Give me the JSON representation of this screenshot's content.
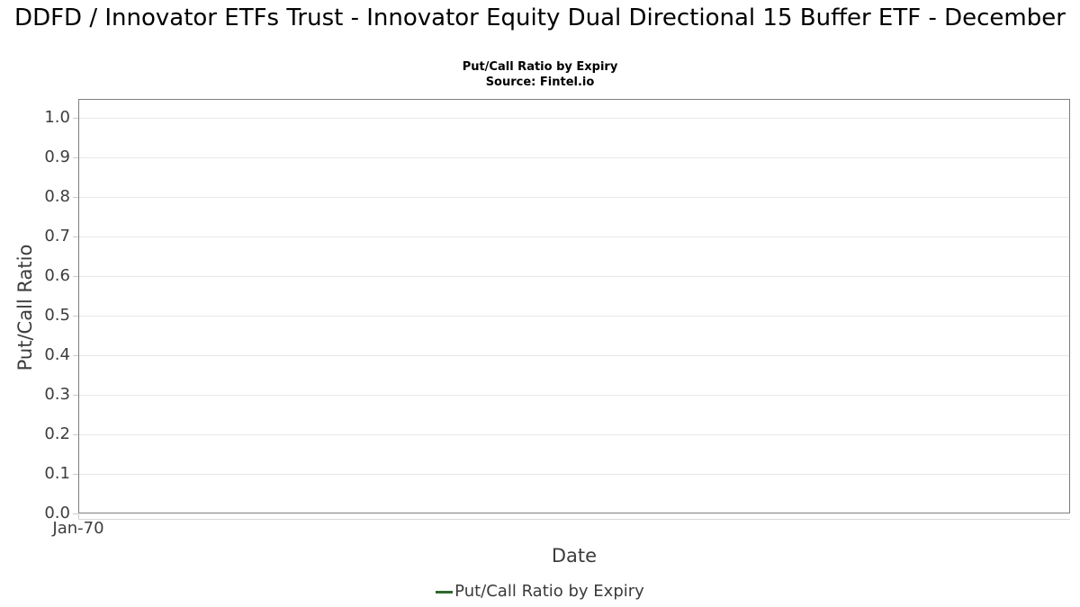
{
  "header": {
    "title": "DDFD / Innovator ETFs Trust - Innovator Equity Dual Directional 15 Buffer ETF - December",
    "subtitle": "Put/Call Ratio by Expiry",
    "source": "Source: Fintel.io"
  },
  "chart_data": {
    "type": "line",
    "title": "Put/Call Ratio by Expiry",
    "xlabel": "Date",
    "ylabel": "Put/Call Ratio",
    "x_ticks": [
      "Jan-70"
    ],
    "y_ticks": [
      "0.0",
      "0.1",
      "0.2",
      "0.3",
      "0.4",
      "0.5",
      "0.6",
      "0.7",
      "0.8",
      "0.9",
      "1.0"
    ],
    "ylim": [
      0,
      1.05
    ],
    "grid": true,
    "legend_position": "bottom",
    "series": [
      {
        "name": "Put/Call Ratio by Expiry",
        "color": "#2d6a2e",
        "x": [],
        "values": []
      }
    ]
  },
  "legend": {
    "items": [
      {
        "label": "Put/Call Ratio by Expiry",
        "color": "#2d6a2e"
      }
    ]
  },
  "colors": {
    "plot_border": "#7d7d7d",
    "gridline": "#e8e8e8",
    "tick_text": "#3d3d3d",
    "accent_green": "#2d6a2e"
  }
}
